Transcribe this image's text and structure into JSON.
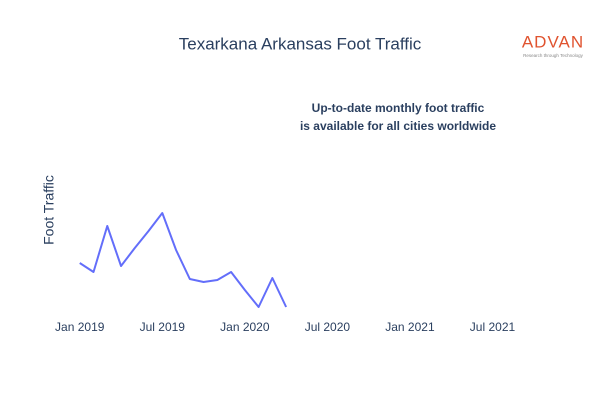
{
  "chart_data": {
    "type": "line",
    "title": "Texarkana Arkansas Foot Traffic",
    "y_label": "Foot Traffic",
    "annotation": [
      "Up-to-date monthly foot traffic",
      "is available for all cities worldwide"
    ],
    "logo": {
      "name": "ADVAN",
      "tagline": "Research through Technology"
    },
    "x": [
      "2019-01",
      "2019-02",
      "2019-03",
      "2019-04",
      "2019-05",
      "2019-06",
      "2019-07",
      "2019-08",
      "2019-09",
      "2019-10",
      "2019-11",
      "2019-12",
      "2020-01",
      "2020-02",
      "2020-03",
      "2020-04"
    ],
    "series": [
      {
        "name": "Foot Traffic",
        "color": "#636efa",
        "values": [
          57,
          48,
          94,
          54,
          72,
          89,
          107,
          70,
          41,
          38,
          40,
          48,
          30,
          13,
          42,
          13
        ]
      }
    ],
    "xlim": [
      "2018-12",
      "2021-09"
    ],
    "xticks": [
      {
        "value": "2019-01",
        "label": "Jan 2019"
      },
      {
        "value": "2019-07",
        "label": "Jul 2019"
      },
      {
        "value": "2020-01",
        "label": "Jan 2020"
      },
      {
        "value": "2020-07",
        "label": "Jul 2020"
      },
      {
        "value": "2021-01",
        "label": "Jan 2021"
      },
      {
        "value": "2021-07",
        "label": "Jul 2021"
      }
    ],
    "ylim": [
      0,
      200
    ],
    "grid": false
  }
}
